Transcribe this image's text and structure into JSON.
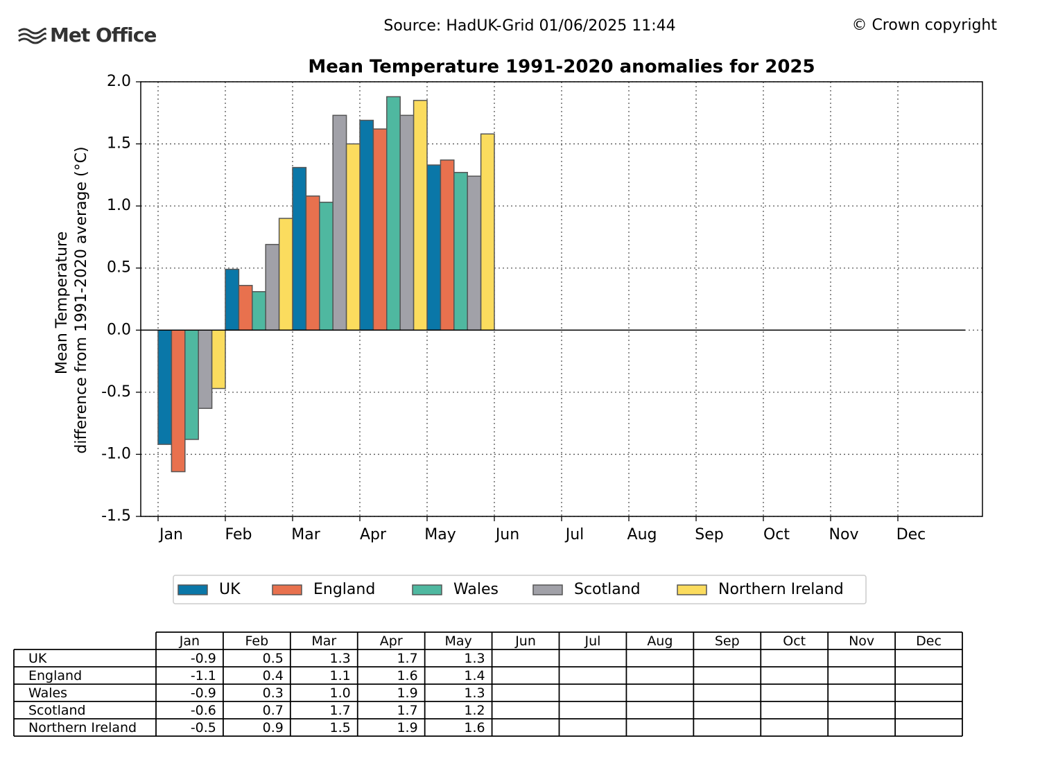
{
  "logo": "Met Office",
  "source": "Source: HadUK-Grid 01/06/2025 11:44",
  "copyright": "© Crown copyright",
  "chart_data": {
    "type": "bar",
    "title": "Mean Temperature 1991-2020 anomalies for 2025",
    "ylabel": [
      "Mean Temperature",
      "difference from 1991-2020 average (°C)"
    ],
    "categories": [
      "Jan",
      "Feb",
      "Mar",
      "Apr",
      "May",
      "Jun",
      "Jul",
      "Aug",
      "Sep",
      "Oct",
      "Nov",
      "Dec"
    ],
    "series": [
      {
        "name": "UK",
        "color": "#0a77a8",
        "values": [
          -0.92,
          0.49,
          1.31,
          1.69,
          1.33,
          null,
          null,
          null,
          null,
          null,
          null,
          null
        ],
        "value_labels": [
          "-0.9",
          "0.5",
          "1.3",
          "1.7",
          "1.3",
          null,
          null,
          null,
          null,
          null,
          null,
          null
        ]
      },
      {
        "name": "England",
        "color": "#e8714e",
        "values": [
          -1.14,
          0.36,
          1.08,
          1.62,
          1.37,
          null,
          null,
          null,
          null,
          null,
          null,
          null
        ],
        "value_labels": [
          "-1.1",
          "0.4",
          "1.1",
          "1.6",
          "1.4",
          null,
          null,
          null,
          null,
          null,
          null,
          null
        ]
      },
      {
        "name": "Wales",
        "color": "#4fb8a0",
        "values": [
          -0.88,
          0.31,
          1.03,
          1.88,
          1.27,
          null,
          null,
          null,
          null,
          null,
          null,
          null
        ],
        "value_labels": [
          "-0.9",
          "0.3",
          "1.0",
          "1.9",
          "1.3",
          null,
          null,
          null,
          null,
          null,
          null,
          null
        ]
      },
      {
        "name": "Scotland",
        "color": "#a1a1a8",
        "values": [
          -0.63,
          0.69,
          1.73,
          1.73,
          1.24,
          null,
          null,
          null,
          null,
          null,
          null,
          null
        ],
        "value_labels": [
          "-0.6",
          "0.7",
          "1.7",
          "1.7",
          "1.2",
          null,
          null,
          null,
          null,
          null,
          null,
          null
        ]
      },
      {
        "name": "Northern Ireland",
        "color": "#fbdc5e",
        "values": [
          -0.47,
          0.9,
          1.5,
          1.85,
          1.58,
          null,
          null,
          null,
          null,
          null,
          null,
          null
        ],
        "value_labels": [
          "-0.5",
          "0.9",
          "1.5",
          "1.9",
          "1.6",
          null,
          null,
          null,
          null,
          null,
          null,
          null
        ]
      }
    ],
    "ylim": [
      -1.5,
      2.0
    ],
    "yticks": [
      {
        "value": -1.5,
        "label": "-1.5"
      },
      {
        "value": -1,
        "label": "-1.0"
      },
      -0.5,
      {
        "value": 0,
        "label": "0.0"
      },
      0.5,
      {
        "value": 1,
        "label": "1.0"
      },
      1.5,
      {
        "value": 2,
        "label": "2.0"
      }
    ],
    "grid": true,
    "legend": "bottom"
  }
}
